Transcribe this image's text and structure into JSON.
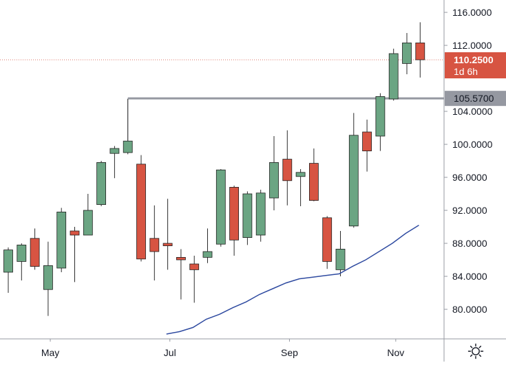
{
  "chart_data": {
    "type": "candlestick",
    "x_tick_labels": [
      "May",
      "Jul",
      "Sep",
      "Nov"
    ],
    "y_ticks": [
      "116.0000",
      "112.0000",
      "104.0000",
      "100.0000",
      "96.0000",
      "92.0000",
      "88.0000",
      "84.0000",
      "80.0000"
    ],
    "y_range": [
      77,
      118
    ],
    "x_tick_positions": [
      3.5,
      12.5,
      21.5,
      29.5
    ],
    "candles": [
      {
        "o": 84.5,
        "h": 87.5,
        "l": 82.0,
        "c": 87.2
      },
      {
        "o": 85.8,
        "h": 88.0,
        "l": 83.5,
        "c": 87.8
      },
      {
        "o": 88.6,
        "h": 89.8,
        "l": 84.8,
        "c": 85.2
      },
      {
        "o": 82.4,
        "h": 88.2,
        "l": 79.2,
        "c": 85.3
      },
      {
        "o": 85.0,
        "h": 92.3,
        "l": 84.5,
        "c": 91.8
      },
      {
        "o": 89.5,
        "h": 90.0,
        "l": 83.3,
        "c": 89.0
      },
      {
        "o": 89.0,
        "h": 94.0,
        "l": 89.0,
        "c": 92.0
      },
      {
        "o": 92.7,
        "h": 98.0,
        "l": 92.5,
        "c": 97.8
      },
      {
        "o": 98.9,
        "h": 99.8,
        "l": 95.9,
        "c": 99.5
      },
      {
        "o": 99.0,
        "h": 105.5,
        "l": 98.8,
        "c": 100.4
      },
      {
        "o": 97.6,
        "h": 98.7,
        "l": 85.8,
        "c": 86.1
      },
      {
        "o": 88.6,
        "h": 92.6,
        "l": 83.5,
        "c": 87.0
      },
      {
        "o": 88.0,
        "h": 93.4,
        "l": 84.8,
        "c": 87.7
      },
      {
        "o": 86.3,
        "h": 87.3,
        "l": 81.2,
        "c": 86.0
      },
      {
        "o": 85.5,
        "h": 86.5,
        "l": 80.8,
        "c": 84.8
      },
      {
        "o": 86.3,
        "h": 89.8,
        "l": 85.6,
        "c": 87.0
      },
      {
        "o": 87.9,
        "h": 97.0,
        "l": 87.6,
        "c": 96.9
      },
      {
        "o": 94.8,
        "h": 95.0,
        "l": 86.5,
        "c": 88.4
      },
      {
        "o": 88.7,
        "h": 94.3,
        "l": 87.8,
        "c": 94.0
      },
      {
        "o": 89.0,
        "h": 94.5,
        "l": 88.2,
        "c": 94.1
      },
      {
        "o": 93.5,
        "h": 101.0,
        "l": 92.0,
        "c": 97.8
      },
      {
        "o": 98.2,
        "h": 101.7,
        "l": 92.6,
        "c": 95.6
      },
      {
        "o": 96.1,
        "h": 97.0,
        "l": 92.5,
        "c": 96.6
      },
      {
        "o": 97.7,
        "h": 99.5,
        "l": 93.1,
        "c": 93.2
      },
      {
        "o": 91.1,
        "h": 91.3,
        "l": 84.9,
        "c": 85.8
      },
      {
        "o": 84.8,
        "h": 89.5,
        "l": 84.0,
        "c": 87.3
      },
      {
        "o": 90.1,
        "h": 103.8,
        "l": 89.9,
        "c": 101.1
      },
      {
        "o": 101.5,
        "h": 103.0,
        "l": 96.7,
        "c": 99.2
      },
      {
        "o": 101.0,
        "h": 106.2,
        "l": 99.2,
        "c": 105.8
      },
      {
        "o": 105.5,
        "h": 111.6,
        "l": 105.3,
        "c": 111.0
      },
      {
        "o": 109.8,
        "h": 113.5,
        "l": 108.5,
        "c": 112.3
      },
      {
        "o": 112.3,
        "h": 114.8,
        "l": 108.1,
        "c": 110.25
      }
    ],
    "moving_average": [
      {
        "i": 12.5,
        "v": 77.0
      },
      {
        "i": 13.5,
        "v": 77.3
      },
      {
        "i": 14.5,
        "v": 77.8
      },
      {
        "i": 15.5,
        "v": 78.8
      },
      {
        "i": 16.5,
        "v": 79.4
      },
      {
        "i": 17.5,
        "v": 80.2
      },
      {
        "i": 18.5,
        "v": 80.9
      },
      {
        "i": 19.5,
        "v": 81.8
      },
      {
        "i": 20.5,
        "v": 82.5
      },
      {
        "i": 21.5,
        "v": 83.2
      },
      {
        "i": 22.5,
        "v": 83.7
      },
      {
        "i": 23.5,
        "v": 83.9
      },
      {
        "i": 24.5,
        "v": 84.1
      },
      {
        "i": 25.5,
        "v": 84.3
      },
      {
        "i": 26.5,
        "v": 85.2
      },
      {
        "i": 27.5,
        "v": 86.0
      },
      {
        "i": 28.5,
        "v": 87.0
      },
      {
        "i": 29.5,
        "v": 88.0
      },
      {
        "i": 30.5,
        "v": 89.2
      },
      {
        "i": 31.5,
        "v": 90.2
      }
    ],
    "last_price": {
      "value": 110.25,
      "label": "110.2500",
      "countdown": "1d 6h"
    },
    "level_line": {
      "value": 105.57,
      "label": "105.5700",
      "start_index": 9
    },
    "colors": {
      "up": "#6ba583",
      "down": "#d75442",
      "wick": "#2b2b2b",
      "moving_average": "#2e4aa0",
      "level_line": "#9598a1",
      "last_price_badge": "#d75442",
      "level_badge": "#9598a1",
      "grid": "none",
      "axis_border": "#9598a1"
    },
    "grid": false
  },
  "ui": {
    "settings_icon": "gear-icon"
  }
}
